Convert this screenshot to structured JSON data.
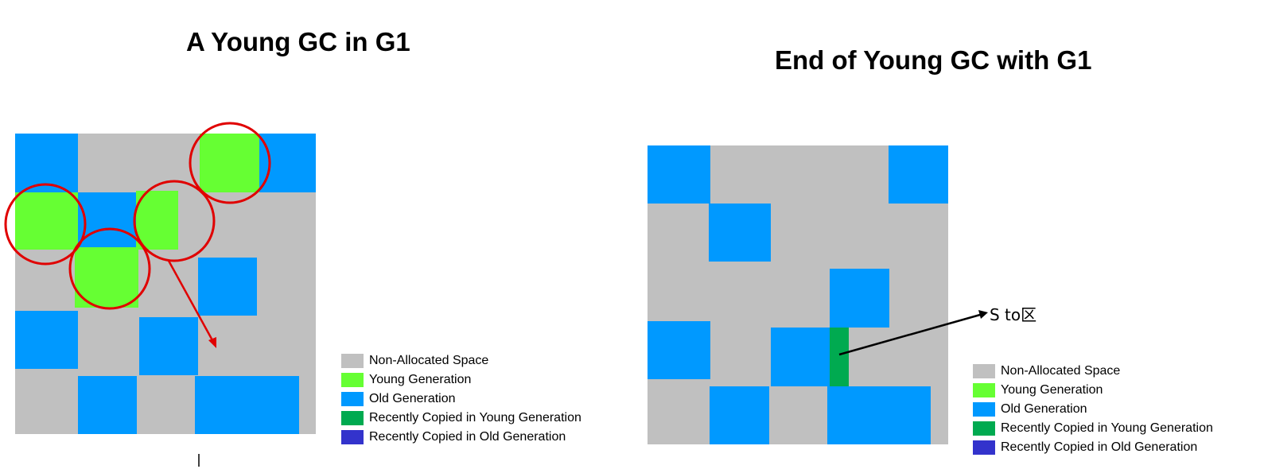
{
  "left_panel": {
    "title": "A Young GC in G1"
  },
  "right_panel": {
    "title": "End of Young GC with G1",
    "callout_label": "S to区"
  },
  "legend": {
    "items": [
      {
        "label": "Non-Allocated Space",
        "color": "#C0C0C0"
      },
      {
        "label": "Young Generation",
        "color": "#66FF33"
      },
      {
        "label": "Old Generation",
        "color": "#0099FF"
      },
      {
        "label": "Recently Copied in Young Generation",
        "color": "#00AA50"
      },
      {
        "label": "Recently Copied in Old Generation",
        "color": "#3333CC"
      }
    ]
  },
  "colors": {
    "non_allocated": "#C0C0C0",
    "young": "#66FF33",
    "old": "#0099FF",
    "recently_copied_young": "#00AA50",
    "recently_copied_old": "#3333CC",
    "highlight_circle": "#E00000",
    "arrow": "#E00000"
  }
}
